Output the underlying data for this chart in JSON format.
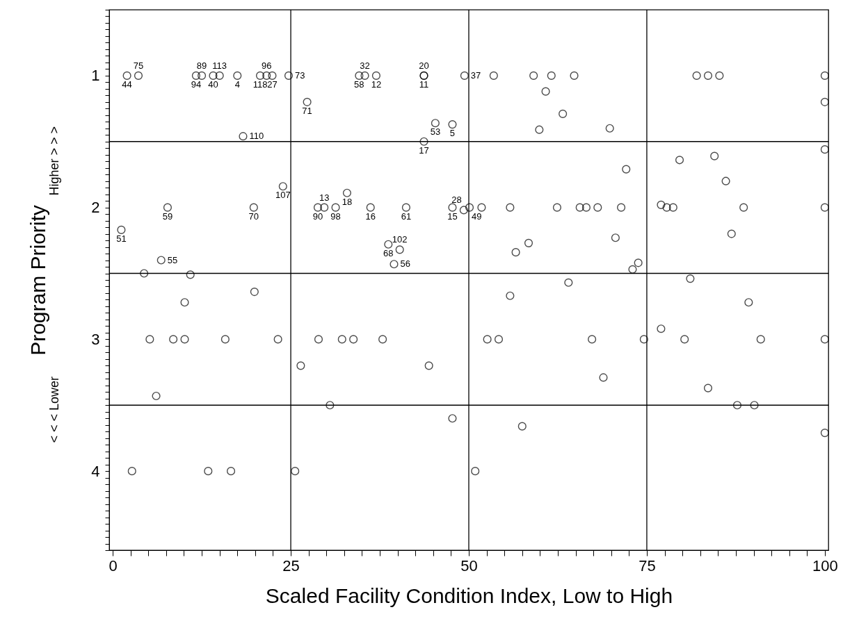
{
  "chart_data": {
    "type": "scatter",
    "xlabel": "Scaled Facility Condition Index, Low to High",
    "ylabel": "Program Priority",
    "xlim": [
      -0.5,
      100.5
    ],
    "ylim": [
      4.6,
      0.5
    ],
    "xticks": [
      0,
      {
        "value": 2.5,
        "label": null
      },
      {
        "value": 5,
        "label": null
      },
      {
        "value": 7.5,
        "label": null
      },
      {
        "value": 10,
        "label": null
      },
      {
        "value": 12.5,
        "label": null
      },
      {
        "value": 15,
        "label": null
      },
      {
        "value": 17.5,
        "label": null
      },
      {
        "value": 20,
        "label": null
      },
      {
        "value": 22.5,
        "label": null
      },
      25,
      {
        "value": 27.5,
        "label": null
      },
      {
        "value": 30,
        "label": null
      },
      {
        "value": 32.5,
        "label": null
      },
      {
        "value": 35,
        "label": null
      },
      {
        "value": 37.5,
        "label": null
      },
      {
        "value": 40,
        "label": null
      },
      {
        "value": 42.5,
        "label": null
      },
      {
        "value": 45,
        "label": null
      },
      {
        "value": 47.5,
        "label": null
      },
      50,
      {
        "value": 52.5,
        "label": null
      },
      {
        "value": 55,
        "label": null
      },
      {
        "value": 57.5,
        "label": null
      },
      {
        "value": 60,
        "label": null
      },
      {
        "value": 62.5,
        "label": null
      },
      {
        "value": 65,
        "label": null
      },
      {
        "value": 67.5,
        "label": null
      },
      {
        "value": 70,
        "label": null
      },
      {
        "value": 72.5,
        "label": null
      },
      75,
      {
        "value": 77.5,
        "label": null
      },
      {
        "value": 80,
        "label": null
      },
      {
        "value": 82.5,
        "label": null
      },
      {
        "value": 85,
        "label": null
      },
      {
        "value": 87.5,
        "label": null
      },
      {
        "value": 90,
        "label": null
      },
      {
        "value": 92.5,
        "label": null
      },
      {
        "value": 95,
        "label": null
      },
      {
        "value": 97.5,
        "label": null
      },
      100
    ],
    "yticks": [
      {
        "value": 0.5,
        "label": null
      },
      {
        "value": 0.55,
        "label": null
      },
      {
        "value": 0.6,
        "label": null
      },
      {
        "value": 0.65,
        "label": null
      },
      {
        "value": 0.7,
        "label": null
      },
      {
        "value": 0.75,
        "label": null
      },
      {
        "value": 0.8,
        "label": null
      },
      {
        "value": 0.85,
        "label": null
      },
      {
        "value": 0.9,
        "label": null
      },
      {
        "value": 0.95,
        "label": null
      },
      1,
      {
        "value": 1.05,
        "label": null
      },
      {
        "value": 1.1,
        "label": null
      },
      {
        "value": 1.15,
        "label": null
      },
      {
        "value": 1.2,
        "label": null
      },
      {
        "value": 1.25,
        "label": null
      },
      {
        "value": 1.3,
        "label": null
      },
      {
        "value": 1.35,
        "label": null
      },
      {
        "value": 1.4,
        "label": null
      },
      {
        "value": 1.45,
        "label": null
      },
      {
        "value": 1.5,
        "label": null
      },
      {
        "value": 1.55,
        "label": null
      },
      {
        "value": 1.6,
        "label": null
      },
      {
        "value": 1.65,
        "label": null
      },
      {
        "value": 1.7,
        "label": null
      },
      {
        "value": 1.75,
        "label": null
      },
      {
        "value": 1.8,
        "label": null
      },
      {
        "value": 1.85,
        "label": null
      },
      {
        "value": 1.9,
        "label": null
      },
      {
        "value": 1.95,
        "label": null
      },
      2,
      {
        "value": 2.05,
        "label": null
      },
      {
        "value": 2.1,
        "label": null
      },
      {
        "value": 2.15,
        "label": null
      },
      {
        "value": 2.2,
        "label": null
      },
      {
        "value": 2.25,
        "label": null
      },
      {
        "value": 2.3,
        "label": null
      },
      {
        "value": 2.35,
        "label": null
      },
      {
        "value": 2.4,
        "label": null
      },
      {
        "value": 2.45,
        "label": null
      },
      {
        "value": 2.5,
        "label": null
      },
      {
        "value": 2.55,
        "label": null
      },
      {
        "value": 2.6,
        "label": null
      },
      {
        "value": 2.65,
        "label": null
      },
      {
        "value": 2.7,
        "label": null
      },
      {
        "value": 2.75,
        "label": null
      },
      {
        "value": 2.8,
        "label": null
      },
      {
        "value": 2.85,
        "label": null
      },
      {
        "value": 2.9,
        "label": null
      },
      {
        "value": 2.95,
        "label": null
      },
      3,
      {
        "value": 3.05,
        "label": null
      },
      {
        "value": 3.1,
        "label": null
      },
      {
        "value": 3.15,
        "label": null
      },
      {
        "value": 3.2,
        "label": null
      },
      {
        "value": 3.25,
        "label": null
      },
      {
        "value": 3.3,
        "label": null
      },
      {
        "value": 3.35,
        "label": null
      },
      {
        "value": 3.4,
        "label": null
      },
      {
        "value": 3.45,
        "label": null
      },
      {
        "value": 3.5,
        "label": null
      },
      {
        "value": 3.55,
        "label": null
      },
      {
        "value": 3.6,
        "label": null
      },
      {
        "value": 3.65,
        "label": null
      },
      {
        "value": 3.7,
        "label": null
      },
      {
        "value": 3.75,
        "label": null
      },
      {
        "value": 3.8,
        "label": null
      },
      {
        "value": 3.85,
        "label": null
      },
      {
        "value": 3.9,
        "label": null
      },
      {
        "value": 3.95,
        "label": null
      },
      4,
      {
        "value": 4.05,
        "label": null
      },
      {
        "value": 4.1,
        "label": null
      },
      {
        "value": 4.15,
        "label": null
      },
      {
        "value": 4.2,
        "label": null
      },
      {
        "value": 4.25,
        "label": null
      },
      {
        "value": 4.3,
        "label": null
      },
      {
        "value": 4.35,
        "label": null
      },
      {
        "value": 4.4,
        "label": null
      },
      {
        "value": 4.45,
        "label": null
      },
      {
        "value": 4.5,
        "label": null
      },
      {
        "value": 4.55,
        "label": null
      },
      {
        "value": 4.6,
        "label": null
      }
    ],
    "grid": false,
    "marker": "circle",
    "series": [
      {
        "color": "#000000",
        "x": [
          2.0,
          3.6,
          11.7,
          12.5,
          14.1,
          15.0,
          17.5,
          20.7,
          21.6,
          22.4,
          24.7,
          34.6,
          35.4,
          37.0,
          43.7,
          43.7,
          49.4,
          53.5,
          59.1,
          61.6,
          64.8,
          82.0,
          83.6,
          85.2,
          100,
          27.3,
          18.3,
          45.3,
          47.7,
          43.7,
          60.8,
          63.2,
          59.9,
          69.8,
          100,
          100,
          79.6,
          84.5,
          72.1,
          86.1,
          23.9,
          32.9,
          7.7,
          19.8,
          28.8,
          29.7,
          31.3,
          36.2,
          41.2,
          47.7,
          50.1,
          51.8,
          55.8,
          62.4,
          65.6,
          66.5,
          68.1,
          71.4,
          77.8,
          78.7,
          88.6,
          100,
          49.3,
          77.0,
          1.2,
          38.7,
          40.3,
          39.5,
          6.8,
          4.4,
          10.9,
          70.6,
          86.9,
          58.4,
          56.6,
          73.8,
          73.0,
          81.1,
          64.0,
          55.8,
          89.3,
          19.9,
          10.1,
          5.2,
          8.5,
          10.1,
          15.8,
          23.2,
          28.9,
          32.2,
          33.8,
          37.9,
          52.6,
          54.2,
          67.3,
          74.6,
          80.3,
          91.0,
          100,
          77.0,
          26.4,
          44.4,
          68.9,
          83.6,
          6.1,
          30.5,
          87.7,
          90.1,
          47.7,
          57.5,
          100,
          2.7,
          13.4,
          16.6,
          25.6,
          50.9
        ],
        "values": [
          1,
          1,
          1,
          1,
          1,
          1,
          1,
          1,
          1,
          1,
          1,
          1,
          1,
          1,
          1,
          1,
          1,
          1,
          1,
          1,
          1,
          1,
          1,
          1,
          1,
          1.2,
          1.46,
          1.36,
          1.37,
          1.5,
          1.12,
          1.29,
          1.41,
          1.4,
          1.2,
          1.56,
          1.64,
          1.61,
          1.71,
          1.8,
          1.84,
          1.89,
          2,
          2,
          2,
          2,
          2,
          2,
          2,
          2,
          2,
          2,
          2,
          2,
          2,
          2,
          2,
          2,
          2,
          2,
          2,
          2,
          2.02,
          1.98,
          2.17,
          2.28,
          2.32,
          2.43,
          2.4,
          2.5,
          2.51,
          2.23,
          2.2,
          2.27,
          2.34,
          2.42,
          2.47,
          2.54,
          2.57,
          2.67,
          2.72,
          2.64,
          2.72,
          3,
          3,
          3,
          3,
          3,
          3,
          3,
          3,
          3,
          3,
          3,
          3,
          3,
          3,
          3,
          3,
          2.92,
          3.2,
          3.2,
          3.29,
          3.37,
          3.43,
          3.5,
          3.5,
          3.5,
          3.6,
          3.66,
          3.71,
          4,
          4,
          4,
          4,
          4
        ]
      }
    ],
    "ref_lines": [
      {
        "axis": "x",
        "value": 25
      },
      {
        "axis": "x",
        "value": 50
      },
      {
        "axis": "x",
        "value": 75
      },
      {
        "axis": "y",
        "value": 1.5
      },
      {
        "axis": "y",
        "value": 2.5
      },
      {
        "axis": "y",
        "value": 3.5
      }
    ],
    "annotations": [
      "Higher > > >",
      "< < < Lower",
      {
        "text": "44",
        "x": 2.0,
        "y": 1
      },
      {
        "text": "75",
        "x": 3.6,
        "y": 1
      },
      {
        "text": "94",
        "x": 11.7,
        "y": 1
      },
      {
        "text": "89",
        "x": 12.5,
        "y": 1
      },
      {
        "text": "40",
        "x": 14.1,
        "y": 1
      },
      {
        "text": "113",
        "x": 15.0,
        "y": 1
      },
      {
        "text": "4",
        "x": 17.5,
        "y": 1
      },
      {
        "text": "118",
        "x": 20.7,
        "y": 1
      },
      {
        "text": "96",
        "x": 21.6,
        "y": 1
      },
      {
        "text": "27",
        "x": 22.4,
        "y": 1
      },
      {
        "text": "73",
        "x": 24.7,
        "y": 1
      },
      {
        "text": "58",
        "x": 34.6,
        "y": 1
      },
      {
        "text": "32",
        "x": 35.4,
        "y": 1
      },
      {
        "text": "12",
        "x": 37.0,
        "y": 1
      },
      {
        "text": "11",
        "x": 43.7,
        "y": 1
      },
      {
        "text": "20",
        "x": 43.7,
        "y": 1
      },
      {
        "text": "37",
        "x": 49.4,
        "y": 1
      },
      {
        "text": "71",
        "x": 27.3,
        "y": 1.2
      },
      {
        "text": "110",
        "x": 18.3,
        "y": 1.46
      },
      {
        "text": "53",
        "x": 45.3,
        "y": 1.36
      },
      {
        "text": "5",
        "x": 47.7,
        "y": 1.37
      },
      {
        "text": "17",
        "x": 43.7,
        "y": 1.5
      },
      {
        "text": "107",
        "x": 23.9,
        "y": 1.84
      },
      {
        "text": "18",
        "x": 32.9,
        "y": 1.89
      },
      {
        "text": "59",
        "x": 7.7,
        "y": 2
      },
      {
        "text": "70",
        "x": 19.8,
        "y": 2
      },
      {
        "text": "90",
        "x": 28.8,
        "y": 2
      },
      {
        "text": "13",
        "x": 29.7,
        "y": 2
      },
      {
        "text": "98",
        "x": 31.3,
        "y": 2
      },
      {
        "text": "16",
        "x": 36.2,
        "y": 2
      },
      {
        "text": "61",
        "x": 41.2,
        "y": 2
      },
      {
        "text": "15",
        "x": 47.7,
        "y": 2
      },
      {
        "text": "28",
        "x": 49.3,
        "y": 2.02
      },
      {
        "text": "49",
        "x": 50.1,
        "y": 2
      },
      {
        "text": "51",
        "x": 1.2,
        "y": 2.17
      },
      {
        "text": "68",
        "x": 38.7,
        "y": 2.28
      },
      {
        "text": "102",
        "x": 40.3,
        "y": 2.32
      },
      {
        "text": "56",
        "x": 39.5,
        "y": 2.43
      },
      {
        "text": "55",
        "x": 6.8,
        "y": 2.4
      }
    ]
  }
}
